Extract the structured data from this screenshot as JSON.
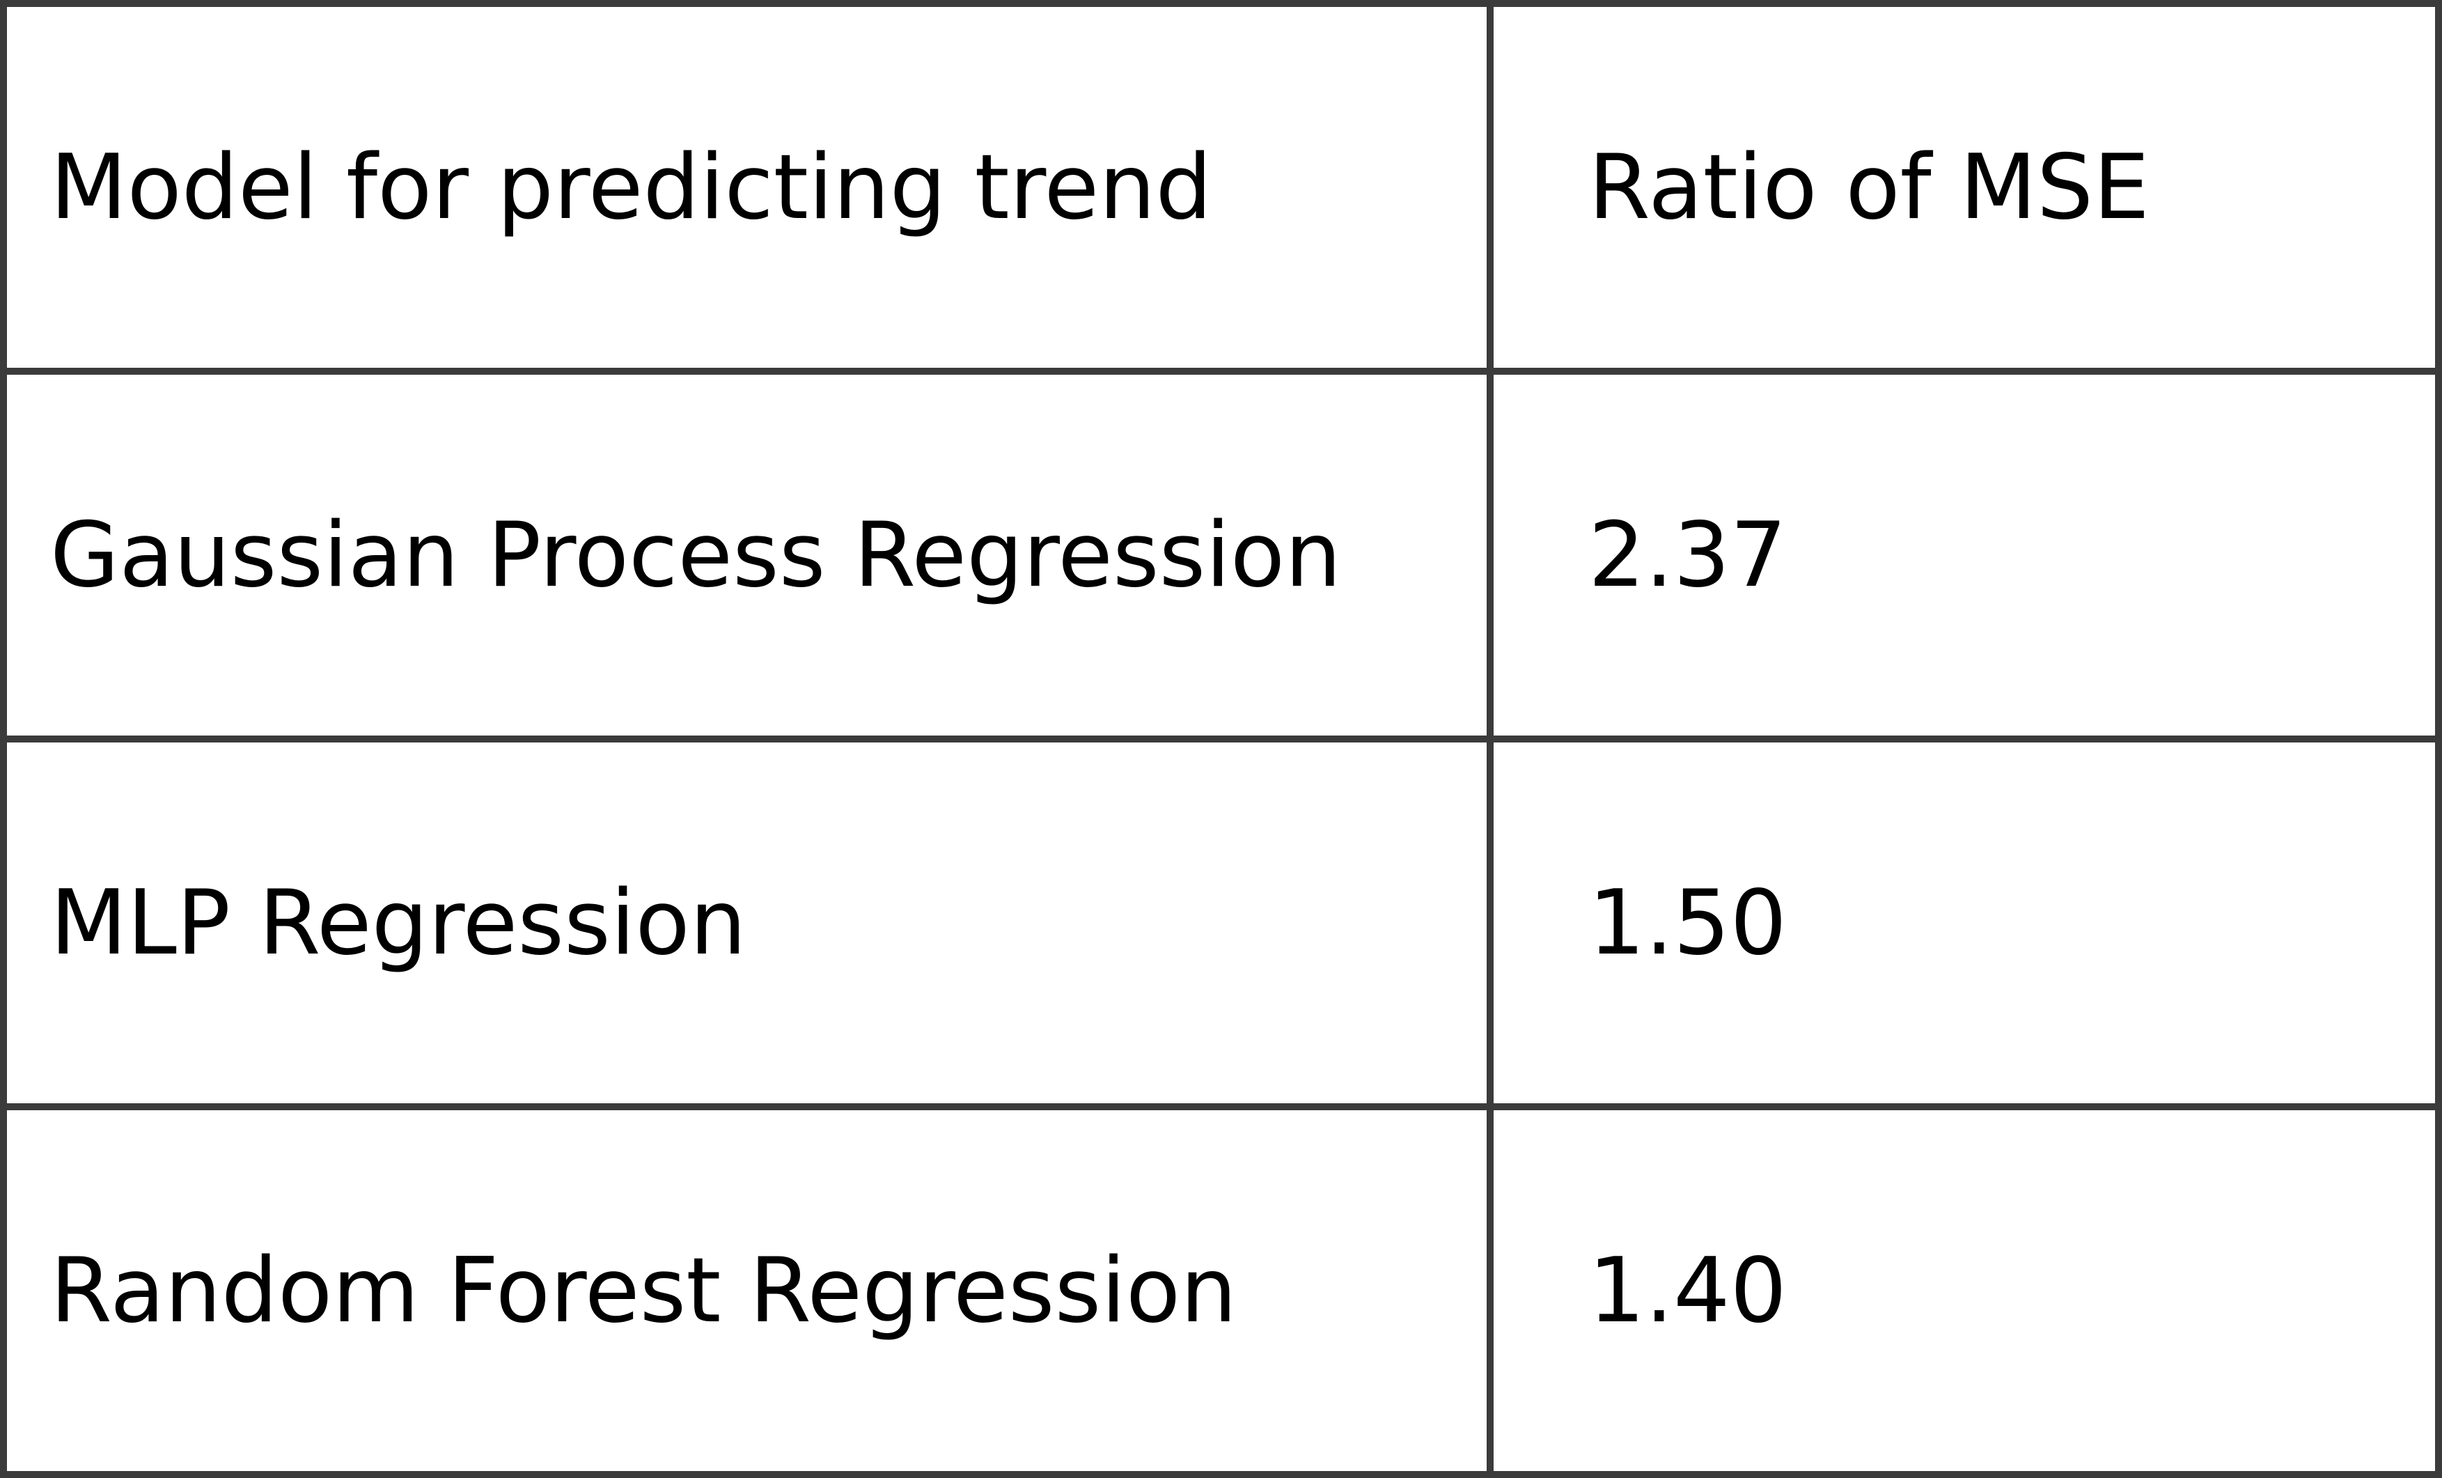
{
  "table": {
    "header": {
      "model": "Model for predicting trend",
      "ratio": "Ratio of MSE"
    },
    "rows": [
      {
        "model": "Gaussian Process Regression",
        "ratio": "2.37"
      },
      {
        "model": "MLP Regression",
        "ratio": "1.50"
      },
      {
        "model": "Random Forest Regression",
        "ratio": "1.40"
      }
    ]
  }
}
